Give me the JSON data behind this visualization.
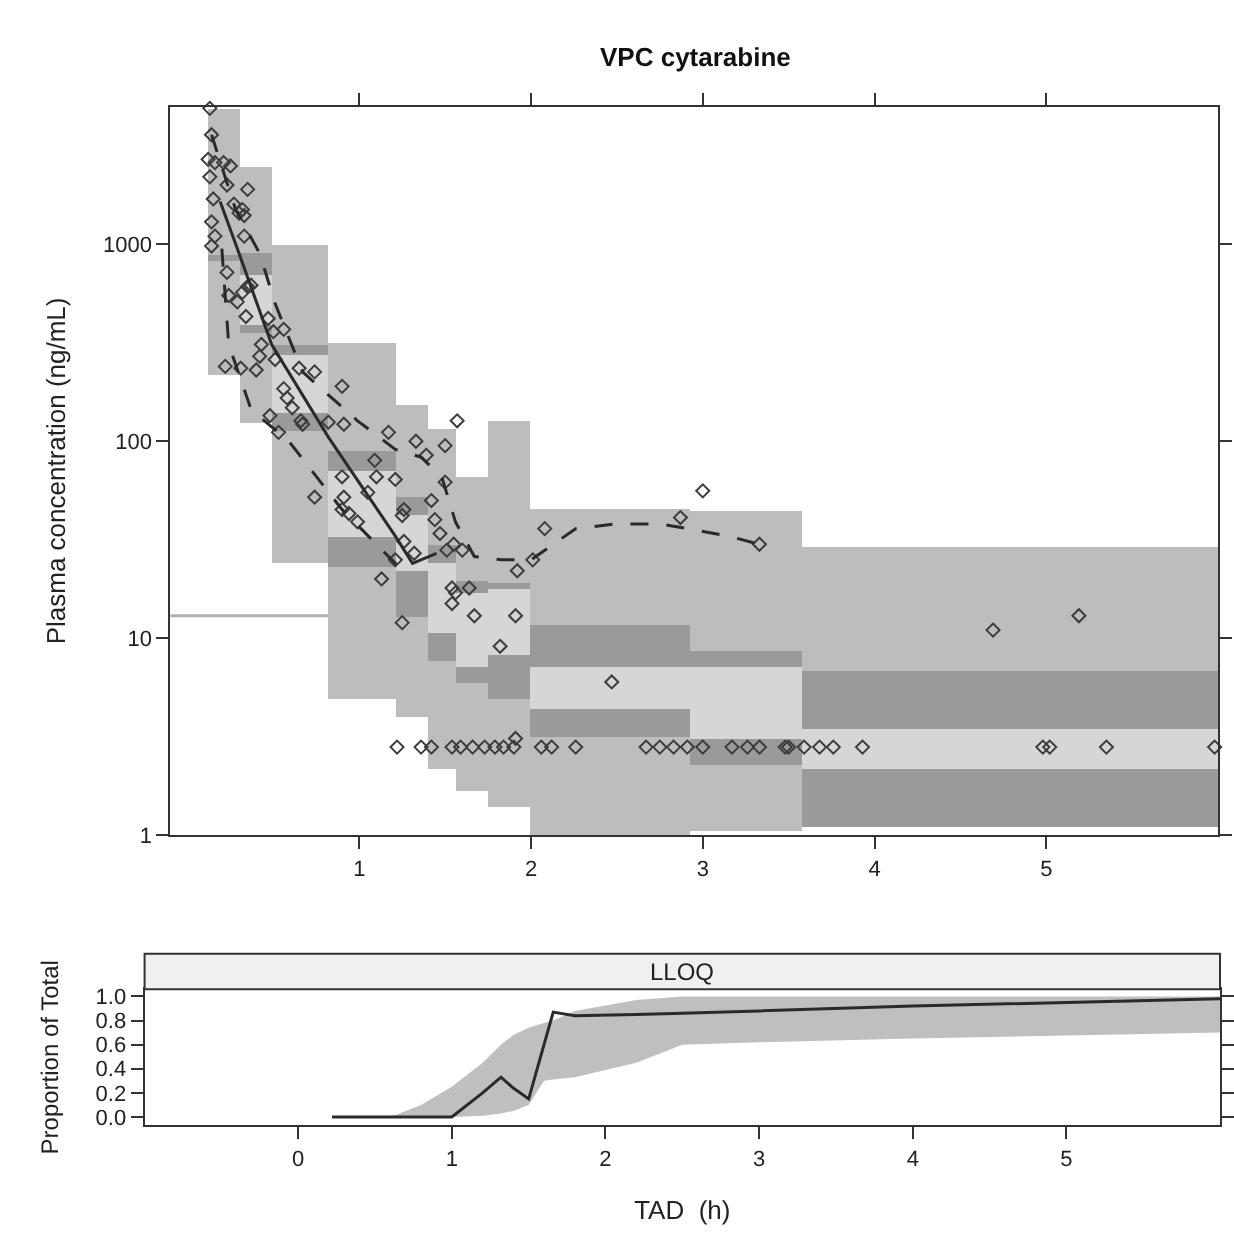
{
  "chart_data": [
    {
      "type": "scatter",
      "title": "VPC cytarabine",
      "ylabel": "Plasma concentration (ng/mL)",
      "log": "y",
      "xlim": [
        -0.1,
        6
      ],
      "ylim": [
        1,
        5000
      ],
      "xticks": [
        1,
        2,
        3,
        4,
        5
      ],
      "yticks": [
        1,
        10,
        100,
        1000
      ],
      "grid": false,
      "legend": false,
      "marker": "diamond",
      "ref_lines": [
        {
          "axis": "y",
          "value": 13,
          "color": "#b0b0b0"
        }
      ],
      "series": [
        {
          "type": "histogram",
          "color": "#bdbdbd",
          "bins": [
            0.12,
            0.31,
            0.49,
            0.82,
            1.21,
            1.4,
            1.56,
            1.75,
            2.0,
            2.93,
            3.58,
            6
          ],
          "base": [
            219,
            123,
            24,
            4.9,
            4,
            2.2,
            1.7,
            1.4,
            1,
            1.05,
            1.1
          ],
          "values": [
            4681,
            2377,
            976,
            311,
            151,
            115,
            64,
            125,
            45,
            43,
            28
          ]
        },
        {
          "type": "histogram",
          "color": "#9a9a9a",
          "bins": [
            0.12,
            0.31,
            0.49,
            0.82,
            1.21,
            1.4,
            1.56,
            1.75,
            2.0,
            2.93,
            3.58,
            6
          ],
          "base": [
            830,
            700,
            277,
            71,
            42,
            24,
            17,
            18,
            7.1,
            7.2,
            3.5
          ],
          "values": [
            60,
            200,
            30,
            18,
            10,
            6,
            2.5,
            1,
            4.6,
            1.5,
            3.3
          ]
        },
        {
          "type": "histogram",
          "color": "#d6d6d6",
          "bins": [
            0.31,
            0.49,
            0.82,
            1.21,
            1.4,
            1.56,
            1.75,
            2.0,
            2.93,
            3.58,
            6
          ],
          "base": [
            390,
            141,
            33,
            22,
            10.7,
            7.2,
            8.3,
            4.4,
            3.1,
            2.2
          ],
          "values": [
            310,
            136,
            38,
            20,
            13.3,
            9.8,
            9.7,
            2.7,
            4.1,
            1.3
          ]
        },
        {
          "type": "histogram",
          "color": "#9a9a9a",
          "bins": [
            0.31,
            0.49,
            0.82,
            1.21,
            1.4,
            1.56,
            1.75,
            2.0,
            2.93,
            3.58,
            6
          ],
          "base": [
            355,
            112,
            23,
            13,
            7.7,
            5.9,
            4.9,
            3.2,
            2.3,
            1.1
          ],
          "values": [
            35,
            29,
            10,
            9,
            3,
            1.3,
            3.4,
            1.2,
            0.8,
            1.1
          ]
        },
        {
          "color": "#3c3c3c",
          "x": [
            0.13,
            0.14,
            0.12,
            0.16,
            0.21,
            0.25,
            0.13,
            0.23,
            0.35,
            0.15,
            0.27,
            0.32,
            0.3,
            0.33,
            0.14,
            0.33,
            0.16,
            0.14,
            0.24,
            0.35,
            0.37,
            0.23,
            0.32,
            0.29,
            0.34,
            0.47,
            0.5,
            0.56,
            0.43,
            0.42,
            0.51,
            0.22,
            0.31,
            0.4,
            0.65,
            0.74,
            0.9,
            0.56,
            0.58,
            0.61,
            0.66,
            0.48,
            0.53,
            0.67,
            0.82,
            0.74,
            0.91,
            0.9,
            0.91,
            0.9,
            0.94,
            0.99,
            1.05,
            1.09,
            1.1,
            1.17,
            1.21,
            1.25,
            1.26,
            1.26,
            1.21,
            1.13,
            1.25,
            1.32,
            1.33,
            1.39,
            1.42,
            1.44,
            1.47,
            1.51,
            1.55,
            1.6,
            1.56,
            1.54,
            1.57,
            1.5,
            1.5,
            1.54,
            1.64,
            1.67,
            1.82,
            1.91,
            1.92,
            2.01,
            2.08,
            2.47,
            1.91,
            2.87,
            3.0,
            3.33,
            4.69,
            5.19,
            1.22,
            1.36,
            1.42,
            1.54,
            1.59,
            1.66,
            1.73,
            1.79,
            1.84,
            1.9,
            2.06,
            2.12,
            2.26,
            2.67,
            2.75,
            2.83,
            2.91,
            3.0,
            3.17,
            3.26,
            3.33,
            3.48,
            3.5,
            3.59,
            3.68,
            3.76,
            3.93,
            4.98,
            5.02,
            5.35,
            5.98
          ],
          "values": [
            4900,
            3600,
            2700,
            2600,
            2600,
            2500,
            2200,
            2000,
            1900,
            1700,
            1600,
            1500,
            1440,
            1400,
            1300,
            1100,
            1100,
            980,
            550,
            610,
            620,
            720,
            570,
            510,
            430,
            420,
            360,
            370,
            310,
            270,
            260,
            240,
            235,
            230,
            235,
            225,
            190,
            185,
            166,
            148,
            127,
            135,
            111,
            122,
            125,
            52,
            122,
            66,
            52,
            45,
            43,
            39,
            55,
            80,
            66,
            111,
            64,
            42,
            45,
            31,
            25,
            20,
            12,
            27,
            100,
            85,
            50,
            40,
            34,
            28,
            30,
            28,
            17,
            18,
            127,
            95,
            62,
            15,
            18,
            13,
            9.1,
            13,
            22,
            25,
            36,
            6,
            3.1,
            41,
            56,
            30,
            11,
            13,
            2.8,
            2.8,
            2.8,
            2.8,
            2.8,
            2.8,
            2.8,
            2.8,
            2.8,
            2.8,
            2.8,
            2.8,
            2.8,
            2.8,
            2.8,
            2.8,
            2.8,
            2.8,
            2.8,
            2.8,
            2.8,
            2.8,
            2.8,
            2.8,
            2.8,
            2.8,
            2.8,
            2.8,
            2.8,
            2.8,
            2.8
          ]
        },
        {
          "type": "line",
          "color": "#2a2a2a",
          "line_style": "solid",
          "marker": "none",
          "x": [
            0.19,
            0.3,
            0.49,
            0.82,
            1.21,
            1.31,
            1.45
          ],
          "values": [
            1650,
            900,
            310,
            105,
            33,
            24,
            27
          ]
        },
        {
          "type": "line",
          "color": "#2a2a2a",
          "line_style": "dashed",
          "marker": "none",
          "x": [
            0.14,
            0.28,
            0.42,
            0.51,
            0.67,
            0.99,
            1.21,
            1.36,
            1.48,
            1.56,
            1.67,
            1.83,
            2.0,
            2.26,
            2.49,
            2.76,
            3.15,
            3.33
          ],
          "values": [
            3600,
            1500,
            900,
            500,
            225,
            127,
            91,
            83,
            66,
            39,
            26,
            25,
            25,
            36,
            38,
            38,
            33,
            30
          ]
        },
        {
          "type": "line",
          "color": "#2a2a2a",
          "line_style": "dashed",
          "marker": "none",
          "x": [
            0.2,
            0.24,
            0.37,
            0.59,
            0.9,
            1.21,
            1.25
          ],
          "values": [
            950,
            310,
            145,
            100,
            45,
            24,
            25
          ]
        }
      ]
    },
    {
      "type": "line",
      "title": "LLOQ",
      "xlabel": "TAD  (h)",
      "ylabel": "Proportion of Total",
      "xlim": [
        -1,
        6
      ],
      "ylim": [
        -0.07,
        1.06
      ],
      "xticks": [
        0,
        1,
        2,
        3,
        4,
        5
      ],
      "yticks": [
        {
          "value": 0,
          "label": "0.0"
        },
        {
          "value": 0.2,
          "label": "0.2"
        },
        {
          "value": 0.4,
          "label": "0.4"
        },
        {
          "value": 0.6,
          "label": "0.6"
        },
        {
          "value": 0.8,
          "label": "0.8"
        },
        {
          "value": 1,
          "label": "1.0"
        }
      ],
      "grid": false,
      "legend": false,
      "marker": "none",
      "series": [
        {
          "color": "#2a2a2a",
          "x": [
            0.22,
            0.6,
            0.8,
            1.0,
            1.2,
            1.32,
            1.4,
            1.5,
            1.6,
            1.66,
            1.8,
            2.2,
            2.5,
            3,
            4,
            6
          ],
          "values": [
            0,
            0,
            0,
            0,
            0.2,
            0.33,
            0.24,
            0.15,
            0.6,
            0.87,
            0.84,
            0.85,
            0.86,
            0.88,
            0.92,
            0.98
          ],
          "lower": [
            null,
            0,
            0,
            0,
            0.01,
            0.03,
            0.05,
            0.1,
            0.3,
            0.31,
            0.33,
            0.45,
            0.6,
            0.62,
            0.65,
            0.7
          ],
          "upper": [
            null,
            0,
            0.1,
            0.25,
            0.45,
            0.6,
            0.68,
            0.74,
            0.78,
            0.8,
            0.88,
            0.97,
            1.0,
            1.0,
            1.0,
            1.0
          ]
        }
      ]
    }
  ]
}
